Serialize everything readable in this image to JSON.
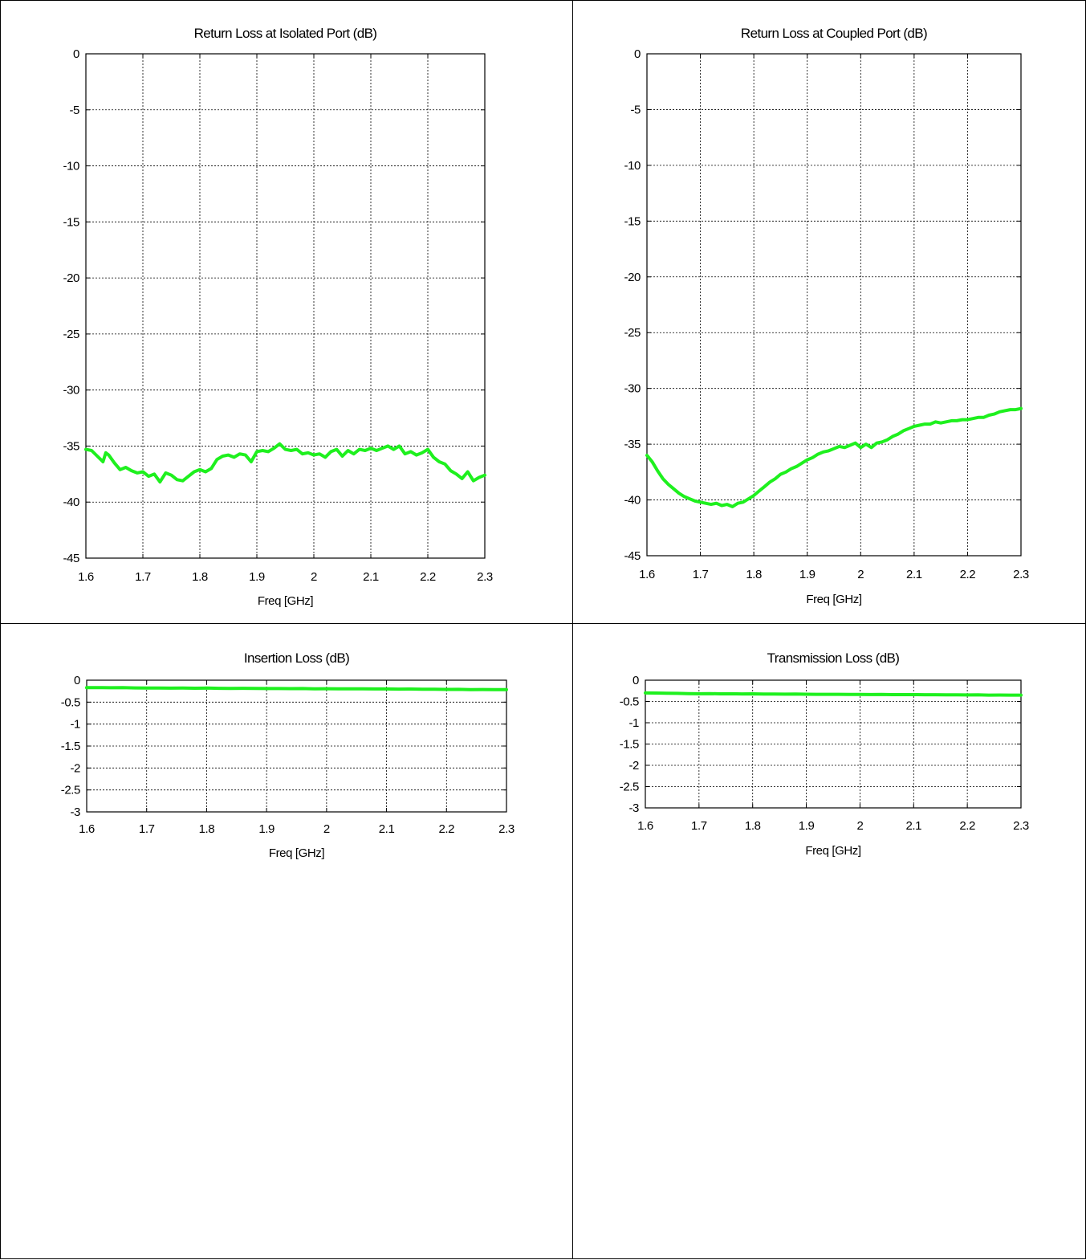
{
  "chart_data": [
    {
      "type": "line",
      "title": "Return Loss at Isolated Port (dB)",
      "xlabel": "Freq [GHz]",
      "ylabel": "",
      "xlim": [
        1.6,
        2.3
      ],
      "ylim": [
        -45,
        0
      ],
      "xticks": [
        "1.6",
        "1.7",
        "1.8",
        "1.9",
        "2",
        "2.1",
        "2.2",
        "2.3"
      ],
      "yticks": [
        "0",
        "-5",
        "-10",
        "-15",
        "-20",
        "-25",
        "-30",
        "-35",
        "-40",
        "-45"
      ],
      "grid": true,
      "line_color": "#1ef01e",
      "series": [
        {
          "x": [
            1.6,
            1.61,
            1.62,
            1.63,
            1.635,
            1.64,
            1.65,
            1.66,
            1.67,
            1.68,
            1.69,
            1.7,
            1.71,
            1.72,
            1.73,
            1.74,
            1.75,
            1.76,
            1.77,
            1.78,
            1.79,
            1.8,
            1.81,
            1.82,
            1.83,
            1.84,
            1.85,
            1.86,
            1.87,
            1.88,
            1.89,
            1.9,
            1.91,
            1.92,
            1.93,
            1.94,
            1.95,
            1.96,
            1.97,
            1.98,
            1.99,
            2.0,
            2.01,
            2.02,
            2.03,
            2.04,
            2.05,
            2.06,
            2.07,
            2.08,
            2.09,
            2.1,
            2.11,
            2.12,
            2.13,
            2.14,
            2.15,
            2.16,
            2.17,
            2.18,
            2.19,
            2.2,
            2.21,
            2.22,
            2.23,
            2.24,
            2.25,
            2.26,
            2.27,
            2.28,
            2.29,
            2.3
          ],
          "y": [
            -35.3,
            -35.4,
            -35.9,
            -36.4,
            -35.6,
            -35.8,
            -36.5,
            -37.1,
            -36.9,
            -37.2,
            -37.4,
            -37.3,
            -37.7,
            -37.5,
            -38.2,
            -37.4,
            -37.6,
            -38.0,
            -38.1,
            -37.7,
            -37.3,
            -37.1,
            -37.3,
            -37.0,
            -36.2,
            -35.9,
            -35.8,
            -36.0,
            -35.7,
            -35.8,
            -36.4,
            -35.5,
            -35.4,
            -35.5,
            -35.2,
            -34.8,
            -35.3,
            -35.4,
            -35.3,
            -35.7,
            -35.6,
            -35.8,
            -35.7,
            -36.0,
            -35.5,
            -35.3,
            -35.9,
            -35.4,
            -35.7,
            -35.3,
            -35.4,
            -35.2,
            -35.4,
            -35.2,
            -35.0,
            -35.3,
            -35.0,
            -35.7,
            -35.5,
            -35.8,
            -35.6,
            -35.3,
            -36.0,
            -36.4,
            -36.6,
            -37.2,
            -37.5,
            -37.9,
            -37.3,
            -38.1,
            -37.8,
            -37.6
          ]
        }
      ]
    },
    {
      "type": "line",
      "title": "Return Loss at Coupled Port (dB)",
      "xlabel": "Freq [GHz]",
      "ylabel": "",
      "xlim": [
        1.6,
        2.3
      ],
      "ylim": [
        -45,
        0
      ],
      "xticks": [
        "1.6",
        "1.7",
        "1.8",
        "1.9",
        "2",
        "2.1",
        "2.2",
        "2.3"
      ],
      "yticks": [
        "0",
        "-5",
        "-10",
        "-15",
        "-20",
        "-25",
        "-30",
        "-35",
        "-40",
        "-45"
      ],
      "grid": true,
      "line_color": "#1ef01e",
      "series": [
        {
          "x": [
            1.6,
            1.61,
            1.62,
            1.63,
            1.64,
            1.65,
            1.66,
            1.67,
            1.68,
            1.69,
            1.7,
            1.71,
            1.72,
            1.73,
            1.74,
            1.75,
            1.76,
            1.77,
            1.78,
            1.79,
            1.8,
            1.81,
            1.82,
            1.83,
            1.84,
            1.85,
            1.86,
            1.87,
            1.88,
            1.89,
            1.9,
            1.91,
            1.92,
            1.93,
            1.94,
            1.95,
            1.96,
            1.97,
            1.98,
            1.99,
            2.0,
            2.01,
            2.02,
            2.03,
            2.04,
            2.05,
            2.06,
            2.07,
            2.08,
            2.09,
            2.1,
            2.11,
            2.12,
            2.13,
            2.14,
            2.15,
            2.16,
            2.17,
            2.18,
            2.19,
            2.2,
            2.21,
            2.22,
            2.23,
            2.24,
            2.25,
            2.26,
            2.27,
            2.28,
            2.29,
            2.3
          ],
          "y": [
            -36.0,
            -36.6,
            -37.4,
            -38.1,
            -38.6,
            -39.0,
            -39.4,
            -39.7,
            -39.9,
            -40.1,
            -40.2,
            -40.3,
            -40.4,
            -40.3,
            -40.5,
            -40.4,
            -40.6,
            -40.3,
            -40.2,
            -39.9,
            -39.6,
            -39.2,
            -38.8,
            -38.4,
            -38.1,
            -37.7,
            -37.5,
            -37.2,
            -37.0,
            -36.7,
            -36.4,
            -36.2,
            -35.9,
            -35.7,
            -35.6,
            -35.4,
            -35.2,
            -35.3,
            -35.1,
            -34.9,
            -35.3,
            -35.0,
            -35.3,
            -34.9,
            -34.8,
            -34.6,
            -34.3,
            -34.1,
            -33.8,
            -33.6,
            -33.4,
            -33.3,
            -33.2,
            -33.2,
            -33.0,
            -33.1,
            -33.0,
            -32.9,
            -32.9,
            -32.8,
            -32.8,
            -32.7,
            -32.6,
            -32.6,
            -32.4,
            -32.3,
            -32.1,
            -32.0,
            -31.9,
            -31.9,
            -31.8
          ]
        }
      ]
    },
    {
      "type": "line",
      "title": "Insertion Loss (dB)",
      "xlabel": "Freq [GHz]",
      "ylabel": "",
      "xlim": [
        1.6,
        2.3
      ],
      "ylim": [
        -3,
        0
      ],
      "xticks": [
        "1.6",
        "1.7",
        "1.8",
        "1.9",
        "2",
        "2.1",
        "2.2",
        "2.3"
      ],
      "yticks": [
        "0",
        "-0.5",
        "-1",
        "-1.5",
        "-2",
        "-2.5",
        "-3"
      ],
      "grid": true,
      "line_color": "#1ef01e",
      "series": [
        {
          "x": [
            1.6,
            1.62,
            1.64,
            1.66,
            1.68,
            1.7,
            1.72,
            1.74,
            1.76,
            1.78,
            1.8,
            1.82,
            1.84,
            1.86,
            1.88,
            1.9,
            1.92,
            1.94,
            1.96,
            1.98,
            2.0,
            2.02,
            2.04,
            2.06,
            2.08,
            2.1,
            2.12,
            2.14,
            2.16,
            2.18,
            2.2,
            2.22,
            2.24,
            2.26,
            2.28,
            2.3
          ],
          "y": [
            -0.17,
            -0.168,
            -0.172,
            -0.17,
            -0.175,
            -0.18,
            -0.178,
            -0.182,
            -0.18,
            -0.183,
            -0.18,
            -0.184,
            -0.186,
            -0.185,
            -0.188,
            -0.19,
            -0.19,
            -0.192,
            -0.19,
            -0.195,
            -0.193,
            -0.196,
            -0.195,
            -0.198,
            -0.2,
            -0.2,
            -0.203,
            -0.202,
            -0.207,
            -0.205,
            -0.21,
            -0.208,
            -0.214,
            -0.213,
            -0.215,
            -0.215
          ]
        }
      ]
    },
    {
      "type": "line",
      "title": "Transmission Loss (dB)",
      "xlabel": "Freq [GHz]",
      "ylabel": "",
      "xlim": [
        1.6,
        2.3
      ],
      "ylim": [
        -3,
        0
      ],
      "xticks": [
        "1.6",
        "1.7",
        "1.8",
        "1.9",
        "2",
        "2.1",
        "2.2",
        "2.3"
      ],
      "yticks": [
        "0",
        "-0.5",
        "-1",
        "-1.5",
        "-2",
        "-2.5",
        "-3"
      ],
      "grid": true,
      "line_color": "#1ef01e",
      "series": [
        {
          "x": [
            1.6,
            1.62,
            1.64,
            1.66,
            1.68,
            1.7,
            1.72,
            1.74,
            1.76,
            1.78,
            1.8,
            1.82,
            1.84,
            1.86,
            1.88,
            1.9,
            1.92,
            1.94,
            1.96,
            1.98,
            2.0,
            2.02,
            2.04,
            2.06,
            2.08,
            2.1,
            2.12,
            2.14,
            2.16,
            2.18,
            2.2,
            2.22,
            2.24,
            2.26,
            2.28,
            2.3
          ],
          "y": [
            -0.3,
            -0.302,
            -0.305,
            -0.31,
            -0.315,
            -0.318,
            -0.316,
            -0.32,
            -0.318,
            -0.322,
            -0.32,
            -0.325,
            -0.326,
            -0.328,
            -0.327,
            -0.33,
            -0.332,
            -0.333,
            -0.332,
            -0.336,
            -0.335,
            -0.338,
            -0.336,
            -0.34,
            -0.339,
            -0.34,
            -0.342,
            -0.341,
            -0.345,
            -0.343,
            -0.348,
            -0.346,
            -0.35,
            -0.349,
            -0.351,
            -0.35
          ]
        }
      ]
    }
  ]
}
